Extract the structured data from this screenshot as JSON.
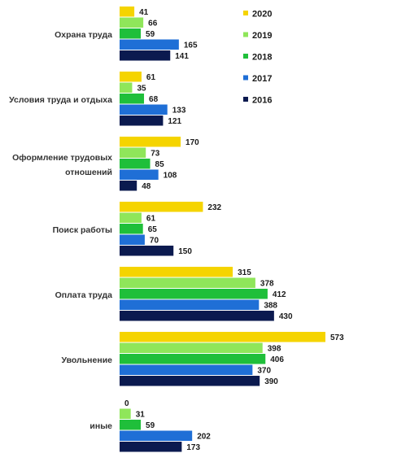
{
  "chart_data": {
    "type": "bar",
    "orientation": "horizontal",
    "legend_position": "top-right",
    "grid": false,
    "categories": [
      [
        "Охрана труда"
      ],
      [
        "Условия труда и отдыха"
      ],
      [
        "Оформление трудовых",
        "отношений"
      ],
      [
        "Поиск работы"
      ],
      [
        "Оплата труда"
      ],
      [
        "Увольнение"
      ],
      [
        "иные"
      ]
    ],
    "series": [
      {
        "name": "2020",
        "color": "#f5d400",
        "values": [
          41,
          61,
          170,
          232,
          315,
          573,
          0
        ]
      },
      {
        "name": "2019",
        "color": "#8fe65a",
        "values": [
          66,
          35,
          73,
          61,
          378,
          398,
          31
        ]
      },
      {
        "name": "2018",
        "color": "#1fbf3a",
        "values": [
          59,
          68,
          85,
          65,
          412,
          406,
          59
        ]
      },
      {
        "name": "2017",
        "color": "#1f6fd6",
        "values": [
          165,
          133,
          108,
          70,
          388,
          370,
          202
        ]
      },
      {
        "name": "2016",
        "color": "#0b1a4f",
        "values": [
          141,
          121,
          48,
          150,
          430,
          390,
          173
        ]
      }
    ]
  }
}
